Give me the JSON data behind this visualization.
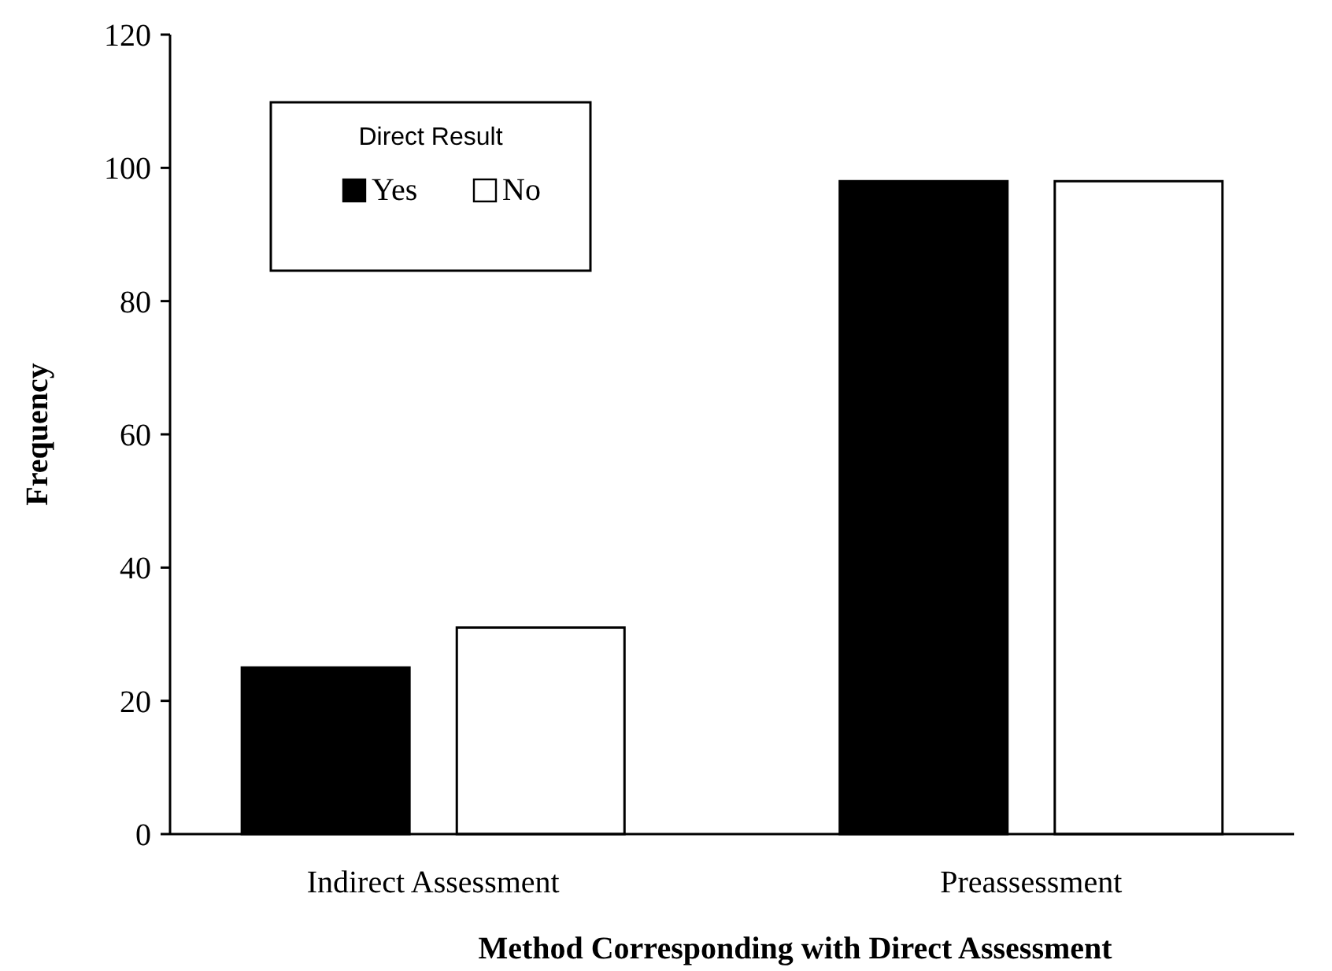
{
  "chart_data": {
    "type": "bar",
    "xlabel": "Method Corresponding with Direct Assessment",
    "ylabel": "Frequency",
    "legend_title": "Direct Result",
    "categories": [
      "Indirect Assessment",
      "Preassessment"
    ],
    "series": [
      {
        "name": "Yes",
        "color": "#000000",
        "values": [
          25,
          98
        ]
      },
      {
        "name": "No",
        "color": "#ffffff",
        "values": [
          31,
          98
        ]
      }
    ],
    "ylim": [
      0,
      120
    ],
    "yticks": [
      0,
      20,
      40,
      60,
      80,
      100,
      120
    ],
    "grid": false,
    "legend": "top left"
  }
}
